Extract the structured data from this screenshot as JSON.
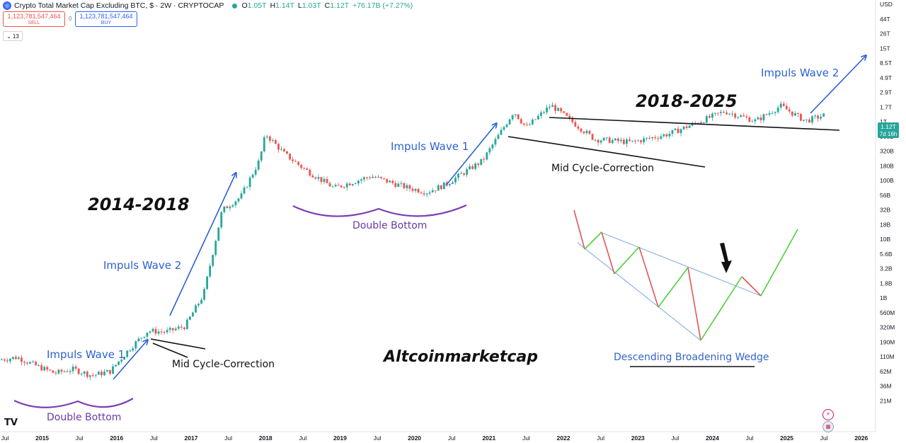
{
  "header": {
    "title": "Crypto Total Market Cap Excluding BTC, $ · 2W · CRYPTOCAP",
    "ohlc": [
      {
        "key": "O",
        "value": "1.05T"
      },
      {
        "key": "H",
        "value": "1.14T"
      },
      {
        "key": "L",
        "value": "1.03T"
      },
      {
        "key": "C",
        "value": "1.12T"
      }
    ],
    "change": "+76.17B (+7.27%)",
    "logo_icon": "cryptocap-logo-icon"
  },
  "trade": {
    "sell_price": "1,123,781,547,464",
    "sell_label": "SELL",
    "spread": "0",
    "buy_price": "1,123,781,547,464",
    "buy_label": "BUY",
    "indicator_count": "13"
  },
  "price_label": {
    "value": "1.12T",
    "countdown": "7d 16h"
  },
  "annotations": {
    "impulse_wave_1_left": "Impuls Wave 1",
    "impulse_wave_2_left": "Impuls Wave 2",
    "impulse_wave_1_right": "Impuls Wave 1",
    "impulse_wave_2_right": "Impuls Wave 2",
    "period_left": "2014-2018",
    "period_right": "2018-2025",
    "double_bottom_left": "Double Bottom",
    "double_bottom_right": "Double Bottom",
    "mid_correction_left": "Mid Cycle-Correction",
    "mid_correction_right": "Mid Cycle-Correction",
    "watermark": "Altcoinmarketcap",
    "wedge_title": "Descending Broadening Wedge"
  },
  "branding": {
    "tv_logo": "TV",
    "icons": [
      "flash-icon",
      "us-flag-icon"
    ]
  },
  "colors": {
    "up": "#26a69a",
    "down": "#ef5350",
    "arrow": "#2a62d2",
    "curve": "#7b3fb5",
    "price_badge": "#26a69a"
  },
  "chart_data": {
    "type": "candlestick",
    "title": "Crypto Total Market Cap Excluding BTC, $ · 2W · CRYPTOCAP",
    "y_scale": "log",
    "y_currency": "USD",
    "y_ticks": [
      "USD",
      "44T",
      "26T",
      "15T",
      "8.5T",
      "4.9T",
      "2.9T",
      "1.7T",
      "1T",
      "560B",
      "320B",
      "180B",
      "100B",
      "56B",
      "32B",
      "18B",
      "10B",
      "5.6B",
      "3.2B",
      "1.8B",
      "1B",
      "560M",
      "320M",
      "190M",
      "110M",
      "62M",
      "36M",
      "21M"
    ],
    "x_ticks": [
      {
        "label": "Jul",
        "year": false
      },
      {
        "label": "2015",
        "year": true
      },
      {
        "label": "Jul",
        "year": false
      },
      {
        "label": "2016",
        "year": true
      },
      {
        "label": "Jul",
        "year": false
      },
      {
        "label": "2017",
        "year": true
      },
      {
        "label": "Jul",
        "year": false
      },
      {
        "label": "2018",
        "year": true
      },
      {
        "label": "Jul",
        "year": false
      },
      {
        "label": "2019",
        "year": true
      },
      {
        "label": "Jul",
        "year": false
      },
      {
        "label": "2020",
        "year": true
      },
      {
        "label": "Jul",
        "year": false
      },
      {
        "label": "2021",
        "year": true
      },
      {
        "label": "Jul",
        "year": false
      },
      {
        "label": "2022",
        "year": true
      },
      {
        "label": "Jul",
        "year": false
      },
      {
        "label": "2023",
        "year": true
      },
      {
        "label": "Jul",
        "year": false
      },
      {
        "label": "2024",
        "year": true
      },
      {
        "label": "Jul",
        "year": false
      },
      {
        "label": "2025",
        "year": true
      },
      {
        "label": "Jul",
        "year": false
      },
      {
        "label": "2026",
        "year": true
      }
    ],
    "price_path": [
      {
        "date": "2014-06",
        "value": 100000000
      },
      {
        "date": "2014-09",
        "value": 110000000
      },
      {
        "date": "2014-12",
        "value": 80000000
      },
      {
        "date": "2015-03",
        "value": 60000000
      },
      {
        "date": "2015-06",
        "value": 70000000
      },
      {
        "date": "2015-09",
        "value": 55000000
      },
      {
        "date": "2015-12",
        "value": 65000000
      },
      {
        "date": "2016-03",
        "value": 150000000
      },
      {
        "date": "2016-06",
        "value": 300000000
      },
      {
        "date": "2016-09",
        "value": 290000000
      },
      {
        "date": "2016-12",
        "value": 360000000
      },
      {
        "date": "2017-03",
        "value": 1200000000
      },
      {
        "date": "2017-06",
        "value": 30000000000
      },
      {
        "date": "2017-09",
        "value": 50000000000
      },
      {
        "date": "2017-12",
        "value": 200000000000
      },
      {
        "date": "2018-01",
        "value": 550000000000
      },
      {
        "date": "2018-04",
        "value": 260000000000
      },
      {
        "date": "2018-07",
        "value": 150000000000
      },
      {
        "date": "2018-12",
        "value": 70000000000
      },
      {
        "date": "2019-06",
        "value": 110000000000
      },
      {
        "date": "2019-12",
        "value": 70000000000
      },
      {
        "date": "2020-03",
        "value": 60000000000
      },
      {
        "date": "2020-06",
        "value": 80000000000
      },
      {
        "date": "2020-12",
        "value": 200000000000
      },
      {
        "date": "2021-05",
        "value": 1300000000000
      },
      {
        "date": "2021-07",
        "value": 700000000000
      },
      {
        "date": "2021-11",
        "value": 1650000000000
      },
      {
        "date": "2022-06",
        "value": 450000000000
      },
      {
        "date": "2022-12",
        "value": 400000000000
      },
      {
        "date": "2023-06",
        "value": 550000000000
      },
      {
        "date": "2024-03",
        "value": 1300000000000
      },
      {
        "date": "2024-08",
        "value": 900000000000
      },
      {
        "date": "2024-12",
        "value": 1600000000000
      },
      {
        "date": "2025-04",
        "value": 900000000000
      },
      {
        "date": "2025-07",
        "value": 1120000000000
      }
    ]
  }
}
